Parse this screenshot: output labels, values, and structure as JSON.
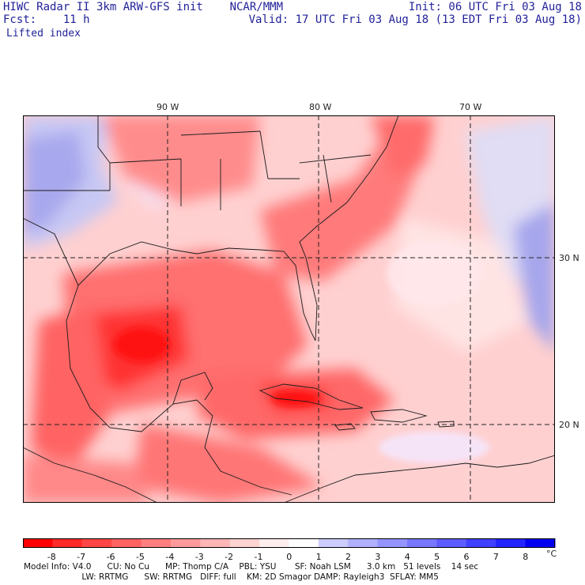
{
  "header": {
    "model_line": "HIWC Radar II 3km ARW-GFS init    NCAR/MMM",
    "forecast_line": "Fcst:    11 h",
    "field_name": "Lifted index",
    "init_line": "Init: 06 UTC Fri 03 Aug 18",
    "valid_line": "Valid: 17 UTC Fri 03 Aug 18 (13 EDT Fri 03 Aug 18)"
  },
  "map": {
    "longitude_labels": [
      "90 W",
      "80 W",
      "70 W"
    ],
    "latitude_labels": [
      "30 N",
      "20 N"
    ]
  },
  "colorbar": {
    "unit": "°C",
    "ticks": [
      "-8",
      "-7",
      "-6",
      "-5",
      "-4",
      "-3",
      "-2",
      "-1",
      "0",
      "1",
      "2",
      "3",
      "4",
      "5",
      "6",
      "7",
      "8"
    ],
    "colors": [
      "#ff0000",
      "#ff2a2a",
      "#ff4646",
      "#ff6262",
      "#ff7e7e",
      "#ff9a9a",
      "#ffb6b6",
      "#ffd2d2",
      "#ffeeee",
      "#ffffff",
      "#ccccff",
      "#b0b0ff",
      "#9494ff",
      "#7878ff",
      "#5c5cff",
      "#4040ff",
      "#2424ff",
      "#0000f0"
    ]
  },
  "footer": {
    "line1": "Model Info: V4.0      CU: No Cu      MP: Thomp C/A    PBL: YSU       SF: Noah LSM      3.0 km   51 levels    14 sec",
    "line2": "                      LW: RRTMG      SW: RRTMG   DIFF: full    KM: 2D Smagor DAMP: Rayleigh3  SFLAY: MM5"
  }
}
